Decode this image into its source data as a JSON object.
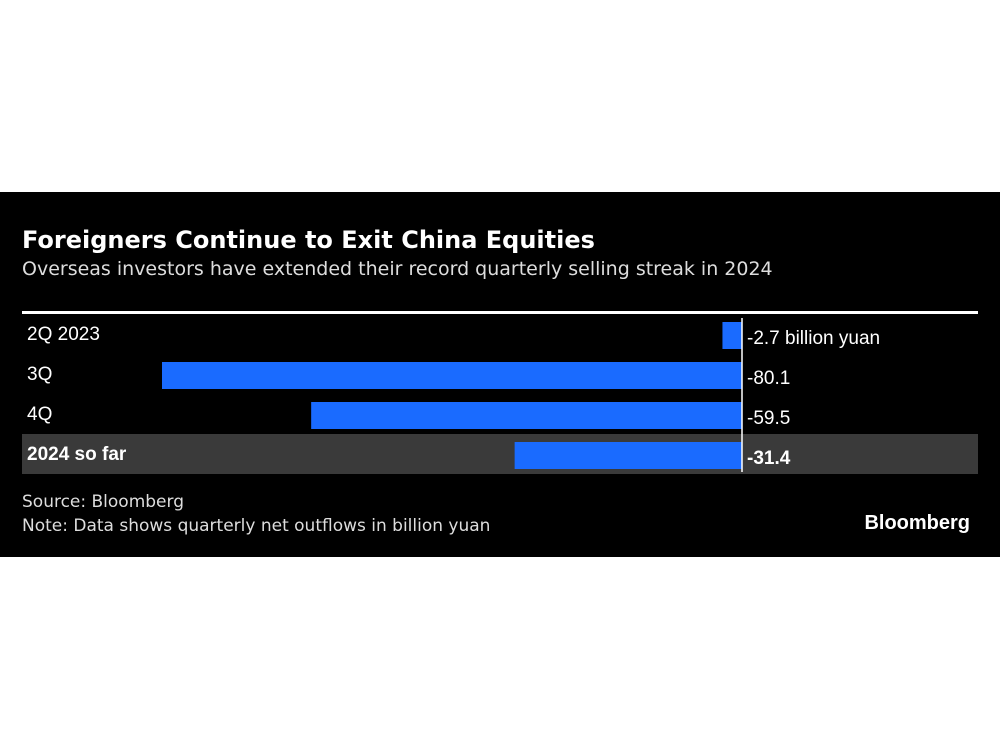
{
  "title": "Foreigners Continue to Exit China Equities",
  "subtitle": "Overseas investors have extended their record quarterly selling streak in 2024",
  "source": "Source: Bloomberg",
  "note": "Note: Data shows quarterly net outflows in billion yuan",
  "logo": "Bloomberg",
  "colors": {
    "bar": "#1a6bff",
    "highlight_row": "#3a3a3a",
    "background": "#000000"
  },
  "chart_data": {
    "type": "bar",
    "orientation": "horizontal",
    "categories": [
      "2Q 2023",
      "3Q",
      "4Q",
      "2024 so far"
    ],
    "values": [
      -2.7,
      -80.1,
      -59.5,
      -31.4
    ],
    "data_labels": [
      "-2.7 billion yuan",
      "-80.1",
      "-59.5",
      "-31.4"
    ],
    "highlighted_category": "2024 so far",
    "unit": "billion yuan"
  }
}
